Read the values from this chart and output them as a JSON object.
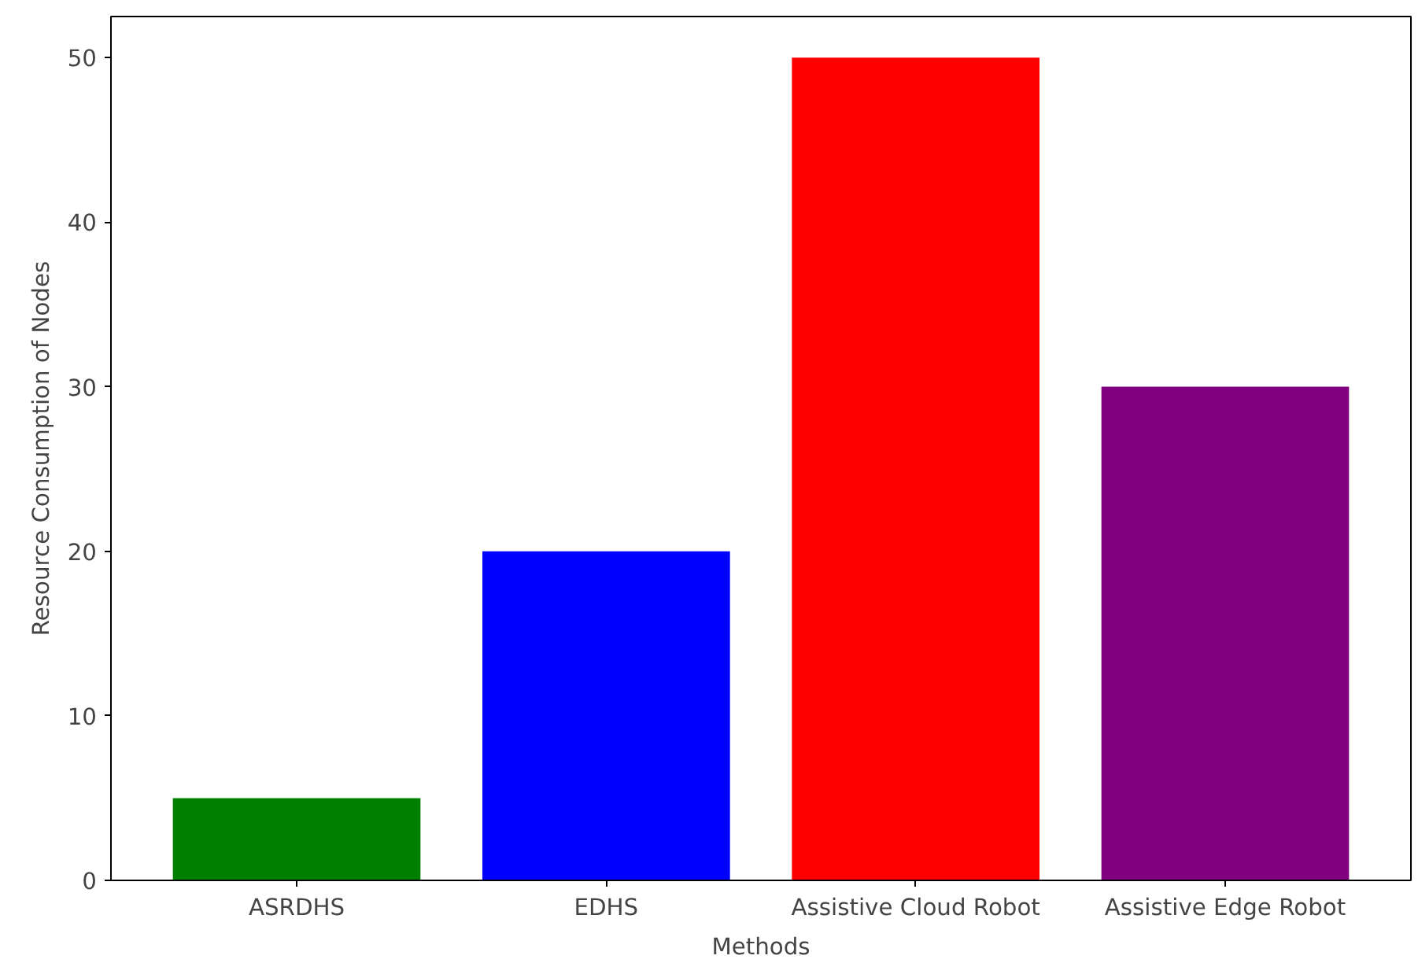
{
  "chart_data": {
    "type": "bar",
    "xlabel": "Methods",
    "ylabel": "Resource Consumption of Nodes",
    "categories": [
      "ASRDHS",
      "EDHS",
      "Assistive Cloud Robot",
      "Assistive Edge Robot"
    ],
    "values": [
      5,
      20,
      50,
      30
    ],
    "colors": [
      "#008000",
      "#0000ff",
      "#ff0000",
      "#800080"
    ],
    "ylim": [
      0,
      52.5
    ],
    "yticks": [
      0,
      10,
      20,
      30,
      40,
      50
    ],
    "grid": false
  }
}
